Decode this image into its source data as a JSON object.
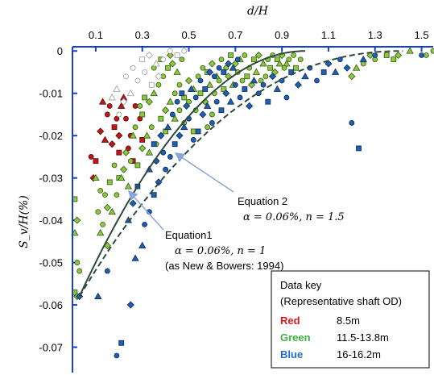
{
  "chart_data": {
    "type": "scatter",
    "title": "",
    "xlabel": "d/H",
    "ylabel": "S_v/H(%)",
    "xlim": [
      0,
      1.55
    ],
    "ylim": [
      -0.076,
      0.001
    ],
    "x_axis_position": "top",
    "x_ticks": [
      0.1,
      0.3,
      0.5,
      0.7,
      0.9,
      1.1,
      1.3,
      1.5
    ],
    "y_ticks": [
      0,
      -0.01,
      -0.02,
      -0.03,
      -0.04,
      -0.05,
      -0.06,
      -0.07
    ],
    "grid": false,
    "colors": {
      "red": "#c0161b",
      "green": "#8dc63f",
      "blue": "#1f5fb0",
      "axis": "#1a3fd0",
      "curve": "#2e4a3c"
    },
    "series": [
      {
        "name": "Red",
        "color": "#c0161b",
        "points": [
          [
            0.08,
            -0.025
          ],
          [
            0.1,
            -0.026
          ],
          [
            0.09,
            -0.03
          ],
          [
            0.13,
            -0.012
          ],
          [
            0.15,
            -0.015
          ],
          [
            0.16,
            -0.013
          ],
          [
            0.18,
            -0.018
          ],
          [
            0.2,
            -0.02
          ],
          [
            0.21,
            -0.013
          ],
          [
            0.23,
            -0.016
          ],
          [
            0.25,
            -0.02
          ],
          [
            0.2,
            -0.024
          ],
          [
            0.17,
            -0.022
          ],
          [
            0.22,
            -0.011
          ],
          [
            0.27,
            -0.013
          ],
          [
            0.29,
            -0.016
          ],
          [
            0.3,
            -0.021
          ],
          [
            0.12,
            -0.019
          ],
          [
            0.14,
            -0.021
          ],
          [
            0.19,
            -0.016
          ],
          [
            0.24,
            -0.023
          ],
          [
            0.26,
            -0.026
          ]
        ]
      },
      {
        "name": "Green",
        "color": "#8dc63f",
        "points": [
          [
            0.01,
            -0.035
          ],
          [
            0.02,
            -0.04
          ],
          [
            0.01,
            -0.043
          ],
          [
            0.02,
            -0.05
          ],
          [
            0.03,
            -0.052
          ],
          [
            0.01,
            -0.057
          ],
          [
            0.02,
            -0.058
          ],
          [
            0.1,
            -0.03
          ],
          [
            0.12,
            -0.033
          ],
          [
            0.14,
            -0.034
          ],
          [
            0.16,
            -0.031
          ],
          [
            0.15,
            -0.037
          ],
          [
            0.17,
            -0.038
          ],
          [
            0.13,
            -0.041
          ],
          [
            0.19,
            -0.034
          ],
          [
            0.2,
            -0.03
          ],
          [
            0.22,
            -0.028
          ],
          [
            0.24,
            -0.032
          ],
          [
            0.18,
            -0.027
          ],
          [
            0.25,
            -0.026
          ],
          [
            0.28,
            -0.027
          ],
          [
            0.3,
            -0.023
          ],
          [
            0.32,
            -0.02
          ],
          [
            0.34,
            -0.018
          ],
          [
            0.36,
            -0.022
          ],
          [
            0.38,
            -0.016
          ],
          [
            0.4,
            -0.014
          ],
          [
            0.42,
            -0.012
          ],
          [
            0.44,
            -0.01
          ],
          [
            0.46,
            -0.008
          ],
          [
            0.48,
            -0.011
          ],
          [
            0.5,
            -0.007
          ],
          [
            0.52,
            -0.009
          ],
          [
            0.54,
            -0.006
          ],
          [
            0.56,
            -0.004
          ],
          [
            0.58,
            -0.005
          ],
          [
            0.6,
            -0.003
          ],
          [
            0.62,
            -0.006
          ],
          [
            0.64,
            -0.002
          ],
          [
            0.66,
            -0.004
          ],
          [
            0.68,
            -0.001
          ],
          [
            0.7,
            -0.003
          ],
          [
            0.72,
            -0.002
          ],
          [
            0.74,
            -0.001
          ],
          [
            0.76,
            -0.004
          ],
          [
            0.78,
            -0.002
          ],
          [
            0.8,
            -0.001
          ],
          [
            0.82,
            -0.003
          ],
          [
            0.84,
            -0.002
          ],
          [
            0.86,
            -0.001
          ],
          [
            0.88,
            -0.002
          ],
          [
            0.9,
            -0.001
          ],
          [
            0.92,
            -0.003
          ],
          [
            0.95,
            -0.001
          ],
          [
            0.98,
            -0.002
          ],
          [
            0.3,
            -0.015
          ],
          [
            0.33,
            -0.012
          ],
          [
            0.35,
            -0.01
          ],
          [
            0.37,
            -0.008
          ],
          [
            0.39,
            -0.006
          ],
          [
            0.41,
            -0.004
          ],
          [
            0.43,
            -0.003
          ],
          [
            0.45,
            -0.005
          ],
          [
            0.47,
            -0.002
          ],
          [
            0.35,
            -0.004
          ],
          [
            0.38,
            -0.002
          ],
          [
            0.42,
            -0.001
          ],
          [
            0.26,
            -0.02
          ],
          [
            0.27,
            -0.018
          ],
          [
            0.29,
            -0.013
          ],
          [
            0.31,
            -0.011
          ],
          [
            0.23,
            -0.024
          ],
          [
            0.21,
            -0.03
          ],
          [
            0.5,
            -0.012
          ],
          [
            0.53,
            -0.014
          ],
          [
            0.55,
            -0.01
          ],
          [
            0.57,
            -0.012
          ],
          [
            0.59,
            -0.008
          ],
          [
            0.61,
            -0.01
          ],
          [
            0.63,
            -0.007
          ],
          [
            0.65,
            -0.009
          ],
          [
            0.67,
            -0.006
          ],
          [
            0.69,
            -0.008
          ],
          [
            0.71,
            -0.005
          ],
          [
            0.73,
            -0.007
          ],
          [
            0.75,
            -0.006
          ],
          [
            0.77,
            -0.008
          ],
          [
            0.79,
            -0.005
          ],
          [
            0.81,
            -0.007
          ],
          [
            0.83,
            -0.006
          ],
          [
            0.85,
            -0.004
          ],
          [
            0.87,
            -0.005
          ],
          [
            0.89,
            -0.003
          ],
          [
            0.91,
            -0.004
          ],
          [
            0.93,
            -0.002
          ],
          [
            0.96,
            -0.004
          ],
          [
            1.2,
            -0.006
          ],
          [
            1.22,
            -0.004
          ],
          [
            1.25,
            -0.003
          ],
          [
            1.3,
            -0.002
          ],
          [
            1.35,
            -0.001
          ],
          [
            1.4,
            -0.001
          ],
          [
            1.45,
            0
          ],
          [
            1.52,
            -0.001
          ],
          [
            1.55,
            0
          ],
          [
            1.38,
            -0.002
          ],
          [
            1.28,
            -0.001
          ],
          [
            0.44,
            -0.016
          ],
          [
            0.46,
            -0.014
          ],
          [
            0.48,
            -0.017
          ],
          [
            0.4,
            -0.019
          ],
          [
            0.36,
            -0.026
          ],
          [
            0.33,
            -0.024
          ],
          [
            0.6,
            -0.015
          ],
          [
            0.58,
            -0.018
          ],
          [
            0.52,
            -0.019
          ],
          [
            0.15,
            -0.046
          ],
          [
            0.12,
            -0.043
          ],
          [
            0.11,
            -0.038
          ]
        ]
      },
      {
        "name": "Blue",
        "color": "#1f5fb0",
        "points": [
          [
            0.03,
            -0.058
          ],
          [
            0.11,
            -0.058
          ],
          [
            0.15,
            -0.052
          ],
          [
            0.19,
            -0.072
          ],
          [
            0.21,
            -0.069
          ],
          [
            0.25,
            -0.06
          ],
          [
            0.27,
            -0.049
          ],
          [
            0.31,
            -0.041
          ],
          [
            0.33,
            -0.038
          ],
          [
            0.35,
            -0.034
          ],
          [
            0.37,
            -0.031
          ],
          [
            0.3,
            -0.046
          ],
          [
            0.4,
            -0.028
          ],
          [
            0.42,
            -0.025
          ],
          [
            0.44,
            -0.022
          ],
          [
            0.46,
            -0.02
          ],
          [
            0.48,
            -0.018
          ],
          [
            0.5,
            -0.016
          ],
          [
            0.52,
            -0.021
          ],
          [
            0.54,
            -0.019
          ],
          [
            0.56,
            -0.015
          ],
          [
            0.58,
            -0.013
          ],
          [
            0.6,
            -0.017
          ],
          [
            0.62,
            -0.012
          ],
          [
            0.64,
            -0.014
          ],
          [
            0.66,
            -0.01
          ],
          [
            0.68,
            -0.012
          ],
          [
            0.7,
            -0.008
          ],
          [
            0.72,
            -0.011
          ],
          [
            0.74,
            -0.009
          ],
          [
            0.76,
            -0.013
          ],
          [
            0.78,
            -0.007
          ],
          [
            0.8,
            -0.01
          ],
          [
            0.82,
            -0.008
          ],
          [
            0.84,
            -0.012
          ],
          [
            0.86,
            -0.006
          ],
          [
            0.88,
            -0.009
          ],
          [
            0.9,
            -0.007
          ],
          [
            0.92,
            -0.011
          ],
          [
            0.94,
            -0.005
          ],
          [
            0.97,
            -0.008
          ],
          [
            1.0,
            -0.006
          ],
          [
            1.02,
            -0.004
          ],
          [
            1.05,
            -0.007
          ],
          [
            1.08,
            -0.005
          ],
          [
            1.1,
            -0.003
          ],
          [
            1.13,
            -0.005
          ],
          [
            1.15,
            -0.002
          ],
          [
            1.2,
            -0.017
          ],
          [
            1.23,
            -0.023
          ],
          [
            1.18,
            -0.004
          ],
          [
            1.25,
            -0.002
          ],
          [
            1.3,
            -0.001
          ],
          [
            1.5,
            -0.001
          ],
          [
            0.35,
            -0.022
          ],
          [
            0.38,
            -0.02
          ],
          [
            0.41,
            -0.018
          ],
          [
            0.43,
            -0.015
          ],
          [
            0.45,
            -0.012
          ],
          [
            0.47,
            -0.01
          ],
          [
            0.49,
            -0.013
          ],
          [
            0.51,
            -0.009
          ],
          [
            0.53,
            -0.011
          ],
          [
            0.55,
            -0.007
          ],
          [
            0.57,
            -0.009
          ],
          [
            0.59,
            -0.005
          ],
          [
            0.33,
            -0.028
          ],
          [
            0.36,
            -0.026
          ],
          [
            0.39,
            -0.024
          ],
          [
            0.28,
            -0.032
          ],
          [
            0.26,
            -0.036
          ],
          [
            0.24,
            -0.04
          ],
          [
            0.61,
            -0.006
          ],
          [
            0.63,
            -0.004
          ],
          [
            0.65,
            -0.005
          ],
          [
            0.67,
            -0.003
          ],
          [
            0.69,
            -0.004
          ],
          [
            0.71,
            -0.002
          ]
        ]
      },
      {
        "name": "open-grey",
        "color": "#aaaaaa",
        "points": [
          [
            0.19,
            -0.009
          ],
          [
            0.23,
            -0.006
          ],
          [
            0.26,
            -0.004
          ],
          [
            0.3,
            -0.002
          ],
          [
            0.33,
            -0.001
          ],
          [
            0.36,
            -0.003
          ],
          [
            0.39,
            -0.002
          ],
          [
            0.42,
            0
          ],
          [
            0.45,
            -0.001
          ],
          [
            0.22,
            -0.012
          ],
          [
            0.25,
            -0.01
          ],
          [
            0.28,
            -0.007
          ],
          [
            0.31,
            -0.005
          ],
          [
            0.34,
            -0.008
          ],
          [
            0.37,
            -0.006
          ],
          [
            0.17,
            -0.011
          ],
          [
            0.2,
            -0.015
          ],
          [
            0.48,
            0
          ]
        ]
      }
    ],
    "curves": [
      {
        "name": "Equation1",
        "alpha_percent": 0.06,
        "n": 1,
        "style": "solid"
      },
      {
        "name": "Equation 2",
        "alpha_percent": 0.06,
        "n": 1.5,
        "style": "dashed"
      }
    ],
    "annotations": {
      "eq1_line1": "Equation1",
      "eq1_line2a": "α = 0.06%, n = 1",
      "eq1_line3": "(as New & Bowers: 1994)",
      "eq2_line1": "Equation 2",
      "eq2_line2a": "α = 0.06%, n = 1.5"
    },
    "legend": {
      "placement": "bottom-right",
      "title1": "Data key",
      "title2": "(Representative shaft OD)",
      "entries": [
        {
          "label": "Red",
          "value": "8.5m",
          "color": "#e0151b"
        },
        {
          "label": "Green",
          "value": "11.5-13.8m",
          "color": "#3cb43c"
        },
        {
          "label": "Blue",
          "value": "16-16.2m",
          "color": "#1f6fc8"
        }
      ]
    }
  }
}
